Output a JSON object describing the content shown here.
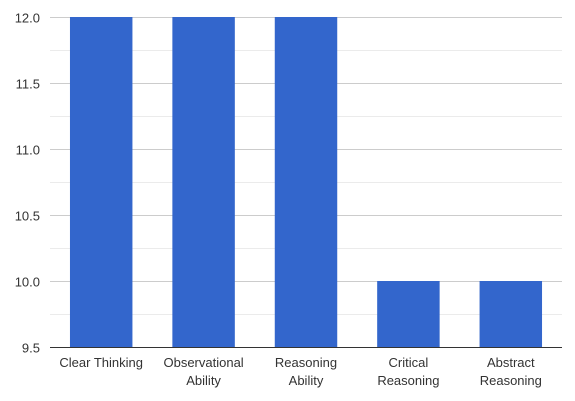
{
  "chart_data": {
    "type": "bar",
    "title": "",
    "xlabel": "",
    "ylabel": "",
    "categories": [
      [
        "Clear Thinking"
      ],
      [
        "Observational",
        "Ability"
      ],
      [
        "Reasoning",
        "Ability"
      ],
      [
        "Critical",
        "Reasoning"
      ],
      [
        "Abstract",
        "Reasoning"
      ]
    ],
    "values": [
      12,
      12,
      12,
      10,
      10
    ],
    "ylim": [
      9.5,
      12.0
    ],
    "yticks": [
      9.5,
      10.0,
      10.5,
      11.0,
      11.5,
      12.0
    ],
    "ytick_labels": [
      "9.5",
      "10.0",
      "10.5",
      "11.0",
      "11.5",
      "12.0"
    ],
    "minor_gridlines": true,
    "grid": true,
    "legend": "none",
    "bar_color": "#3366cc"
  }
}
